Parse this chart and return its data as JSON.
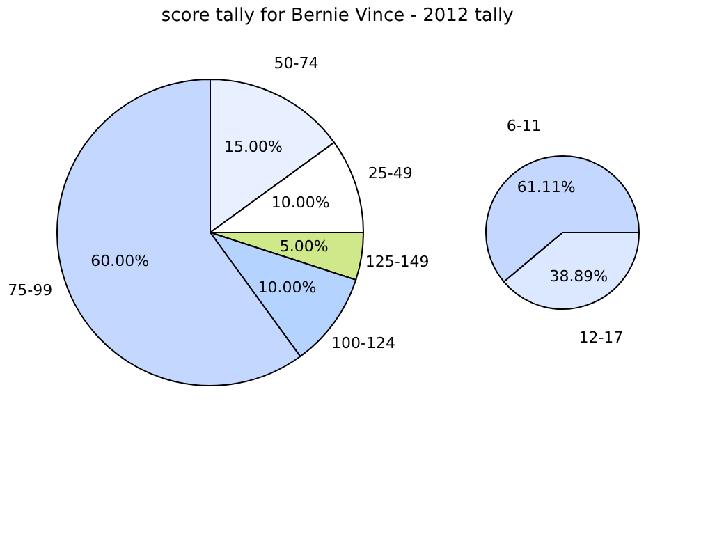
{
  "chart_data": [
    {
      "type": "pie",
      "title": "score tally for Bernie Vince - 2012 tally",
      "categories": [
        "50-74",
        "25-49",
        "125-149",
        "100-124",
        "75-99"
      ],
      "values": [
        15,
        10,
        5,
        10,
        60
      ],
      "value_labels": [
        "15.00%",
        "10.00%",
        "5.00%",
        "10.00%",
        "60.00%"
      ],
      "colors": [
        "#e8f0ff",
        "#ffffff",
        "#cfe88a",
        "#b4d4ff",
        "#c4d8ff"
      ]
    },
    {
      "type": "pie",
      "categories": [
        "12-17",
        "6-11"
      ],
      "values": [
        38.89,
        61.11
      ],
      "value_labels": [
        "38.89%",
        "61.11%"
      ],
      "colors": [
        "#dce8ff",
        "#c4d8ff"
      ]
    }
  ]
}
